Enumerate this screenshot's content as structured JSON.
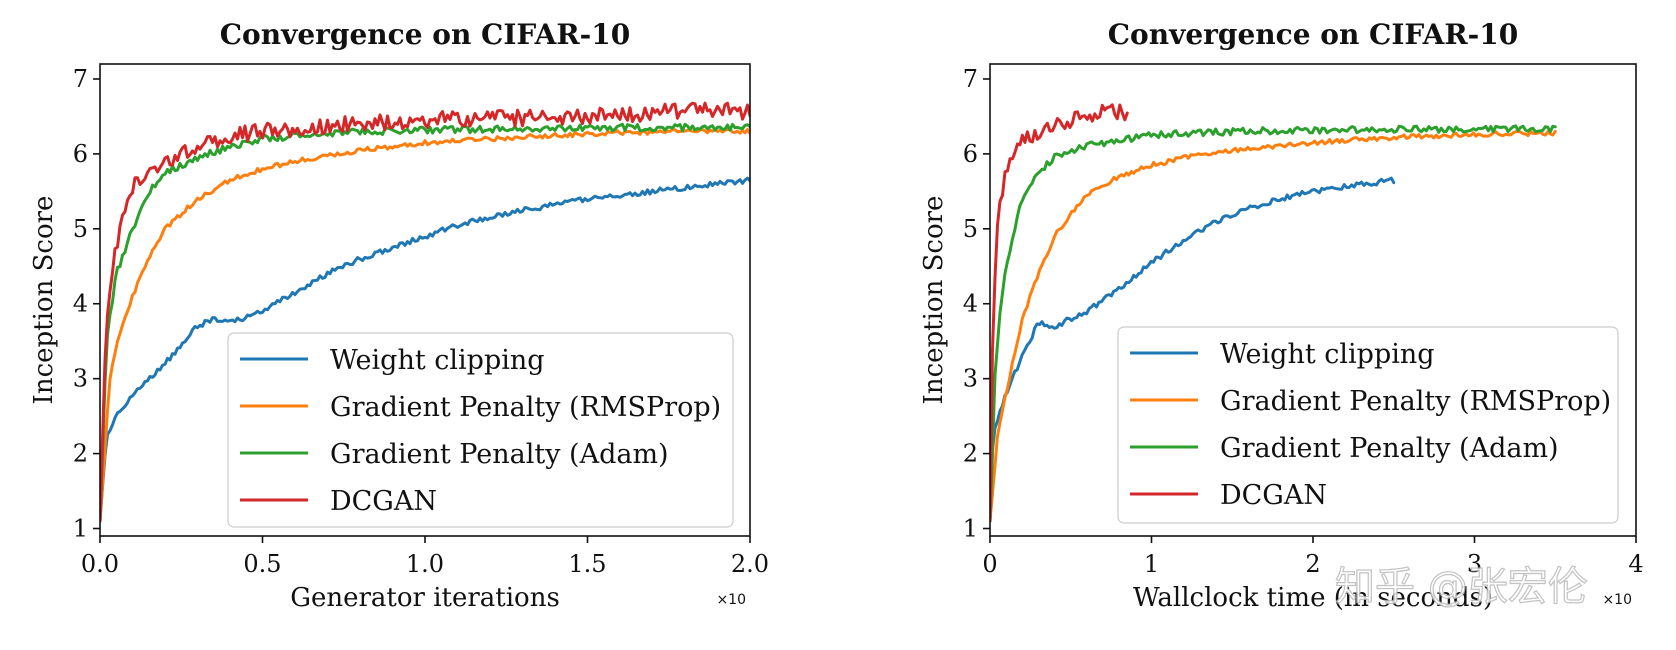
{
  "chart_data": [
    {
      "type": "line",
      "title": "Convergence on CIFAR-10",
      "xlabel": "Generator iterations",
      "ylabel": "Inception Score",
      "x_multiplier": "×10",
      "xlim": [
        0,
        2.0
      ],
      "ylim": [
        0.9,
        7.2
      ],
      "xticks": [
        0,
        0.5,
        1.0,
        1.5,
        2.0
      ],
      "xtick_labels": [
        "0.0",
        "0.5",
        "1.0",
        "1.5",
        "2.0"
      ],
      "yticks": [
        1,
        2,
        3,
        4,
        5,
        6,
        7
      ],
      "ytick_labels": [
        "1",
        "2",
        "3",
        "4",
        "5",
        "6",
        "7"
      ],
      "legend": "lower-right",
      "grid": false,
      "series": [
        {
          "name": "Weight clipping",
          "color": "#1f77b4",
          "noise": 0.035,
          "x": [
            0,
            0.02,
            0.05,
            0.1,
            0.2,
            0.3,
            0.35,
            0.4,
            0.5,
            0.6,
            0.7,
            0.8,
            0.9,
            1.0,
            1.1,
            1.2,
            1.3,
            1.4,
            1.5,
            1.6,
            1.7,
            1.8,
            1.9,
            2.0
          ],
          "y": [
            1.1,
            2.2,
            2.5,
            2.8,
            3.2,
            3.7,
            3.8,
            3.75,
            3.9,
            4.15,
            4.4,
            4.6,
            4.75,
            4.9,
            5.05,
            5.15,
            5.25,
            5.32,
            5.4,
            5.45,
            5.5,
            5.55,
            5.6,
            5.65
          ]
        },
        {
          "name": "Gradient Penalty (RMSProp)",
          "color": "#ff7f0e",
          "noise": 0.03,
          "x": [
            0,
            0.03,
            0.06,
            0.1,
            0.15,
            0.2,
            0.3,
            0.4,
            0.5,
            0.6,
            0.8,
            1.0,
            1.2,
            1.4,
            1.6,
            1.8,
            2.0
          ],
          "y": [
            1.1,
            3.0,
            3.6,
            4.1,
            4.6,
            5.0,
            5.4,
            5.65,
            5.8,
            5.9,
            6.05,
            6.15,
            6.2,
            6.25,
            6.28,
            6.3,
            6.3
          ]
        },
        {
          "name": "Gradient Penalty (Adam)",
          "color": "#2ca02c",
          "noise": 0.045,
          "x": [
            0,
            0.02,
            0.05,
            0.1,
            0.15,
            0.2,
            0.3,
            0.4,
            0.5,
            0.7,
            1.0,
            1.5,
            2.0
          ],
          "y": [
            1.1,
            3.5,
            4.4,
            5.0,
            5.5,
            5.75,
            5.95,
            6.1,
            6.2,
            6.28,
            6.32,
            6.35,
            6.35
          ]
        },
        {
          "name": "DCGAN",
          "color": "#d62728",
          "noise": 0.11,
          "x": [
            0,
            0.02,
            0.05,
            0.1,
            0.15,
            0.2,
            0.3,
            0.4,
            0.5,
            0.7,
            1.0,
            1.5,
            1.9,
            2.0
          ],
          "y": [
            1.1,
            3.8,
            4.8,
            5.55,
            5.75,
            5.9,
            6.1,
            6.25,
            6.3,
            6.38,
            6.45,
            6.5,
            6.6,
            6.55
          ]
        }
      ]
    },
    {
      "type": "line",
      "title": "Convergence on CIFAR-10",
      "xlabel": "Wallclock time (in seconds)",
      "ylabel": "Inception Score",
      "x_multiplier": "×10",
      "xlim": [
        0,
        4
      ],
      "ylim": [
        0.9,
        7.2
      ],
      "xticks": [
        0,
        1,
        2,
        3,
        4
      ],
      "xtick_labels": [
        "0",
        "1",
        "2",
        "3",
        "4"
      ],
      "yticks": [
        1,
        2,
        3,
        4,
        5,
        6,
        7
      ],
      "ytick_labels": [
        "1",
        "2",
        "3",
        "4",
        "5",
        "6",
        "7"
      ],
      "legend": "lower-right",
      "grid": false,
      "series": [
        {
          "name": "Weight clipping",
          "color": "#1f77b4",
          "noise": 0.035,
          "x": [
            0,
            0.02,
            0.1,
            0.2,
            0.3,
            0.4,
            0.5,
            0.6,
            0.8,
            1.0,
            1.2,
            1.4,
            1.6,
            1.8,
            2.0,
            2.2,
            2.4,
            2.5
          ],
          "y": [
            1.1,
            2.3,
            2.8,
            3.3,
            3.75,
            3.7,
            3.8,
            3.9,
            4.2,
            4.55,
            4.85,
            5.1,
            5.28,
            5.4,
            5.5,
            5.57,
            5.62,
            5.65
          ]
        },
        {
          "name": "Gradient Penalty (RMSProp)",
          "color": "#ff7f0e",
          "noise": 0.03,
          "x": [
            0,
            0.05,
            0.1,
            0.15,
            0.2,
            0.3,
            0.4,
            0.5,
            0.6,
            0.8,
            1.0,
            1.2,
            1.5,
            2.0,
            2.5,
            3.0,
            3.5
          ],
          "y": [
            1.1,
            2.3,
            2.8,
            3.3,
            3.8,
            4.4,
            4.9,
            5.2,
            5.45,
            5.7,
            5.85,
            5.95,
            6.05,
            6.15,
            6.22,
            6.26,
            6.28
          ]
        },
        {
          "name": "Gradient Penalty (Adam)",
          "color": "#2ca02c",
          "noise": 0.045,
          "x": [
            0,
            0.03,
            0.06,
            0.1,
            0.15,
            0.2,
            0.3,
            0.4,
            0.5,
            0.7,
            1.0,
            1.5,
            2.0,
            2.5,
            3.0,
            3.5
          ],
          "y": [
            1.1,
            3.0,
            3.8,
            4.5,
            5.0,
            5.4,
            5.75,
            5.95,
            6.05,
            6.15,
            6.25,
            6.3,
            6.32,
            6.33,
            6.33,
            6.33
          ]
        },
        {
          "name": "DCGAN",
          "color": "#d62728",
          "noise": 0.11,
          "x": [
            0,
            0.02,
            0.05,
            0.1,
            0.15,
            0.2,
            0.3,
            0.4,
            0.5,
            0.6,
            0.7,
            0.8,
            0.85
          ],
          "y": [
            1.1,
            4.0,
            5.2,
            5.75,
            6.0,
            6.15,
            6.3,
            6.4,
            6.45,
            6.5,
            6.55,
            6.55,
            6.45
          ]
        }
      ]
    }
  ],
  "watermark": "知乎 @张宏伦"
}
